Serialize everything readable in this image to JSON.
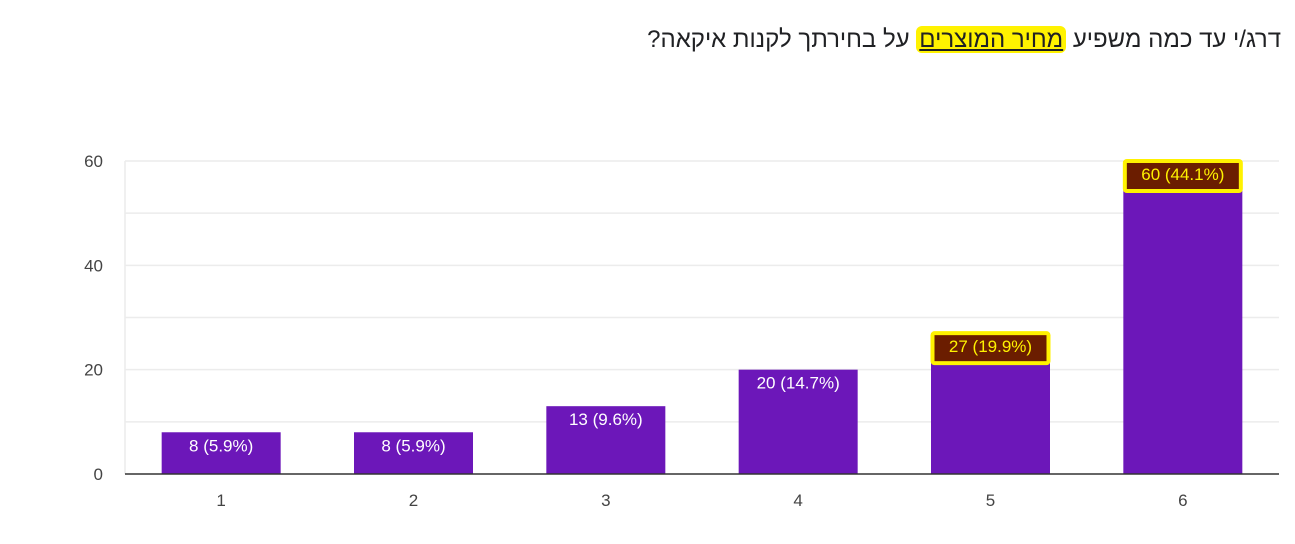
{
  "question": {
    "before": "דרג/י עד כמה משפיע ",
    "highlight": "מחיר המוצרים",
    "after": " על בחירתך לקנות איקאה?"
  },
  "colors": {
    "bar": "#6c17b9",
    "highlight": "#fff200",
    "label_box": "#6b1d00",
    "grid": "#ececec",
    "axis": "#333333"
  },
  "chart_data": {
    "type": "bar",
    "title": "דרג/י עד כמה משפיע מחיר המוצרים על בחירתך לקנות איקאה?",
    "categories": [
      "1",
      "2",
      "3",
      "4",
      "5",
      "6"
    ],
    "values": [
      8,
      8,
      13,
      20,
      27,
      60
    ],
    "labels": [
      "8 (5.9%)",
      "8 (5.9%)",
      "13 (9.6%)",
      "20 (14.7%)",
      "27 (19.9%)",
      "60 (44.1%)"
    ],
    "highlighted": [
      false,
      false,
      false,
      false,
      true,
      true
    ],
    "yticks": [
      "0",
      "20",
      "40",
      "60"
    ],
    "ylim": [
      0,
      60
    ],
    "xlabel": "",
    "ylabel": "",
    "grid": true
  }
}
